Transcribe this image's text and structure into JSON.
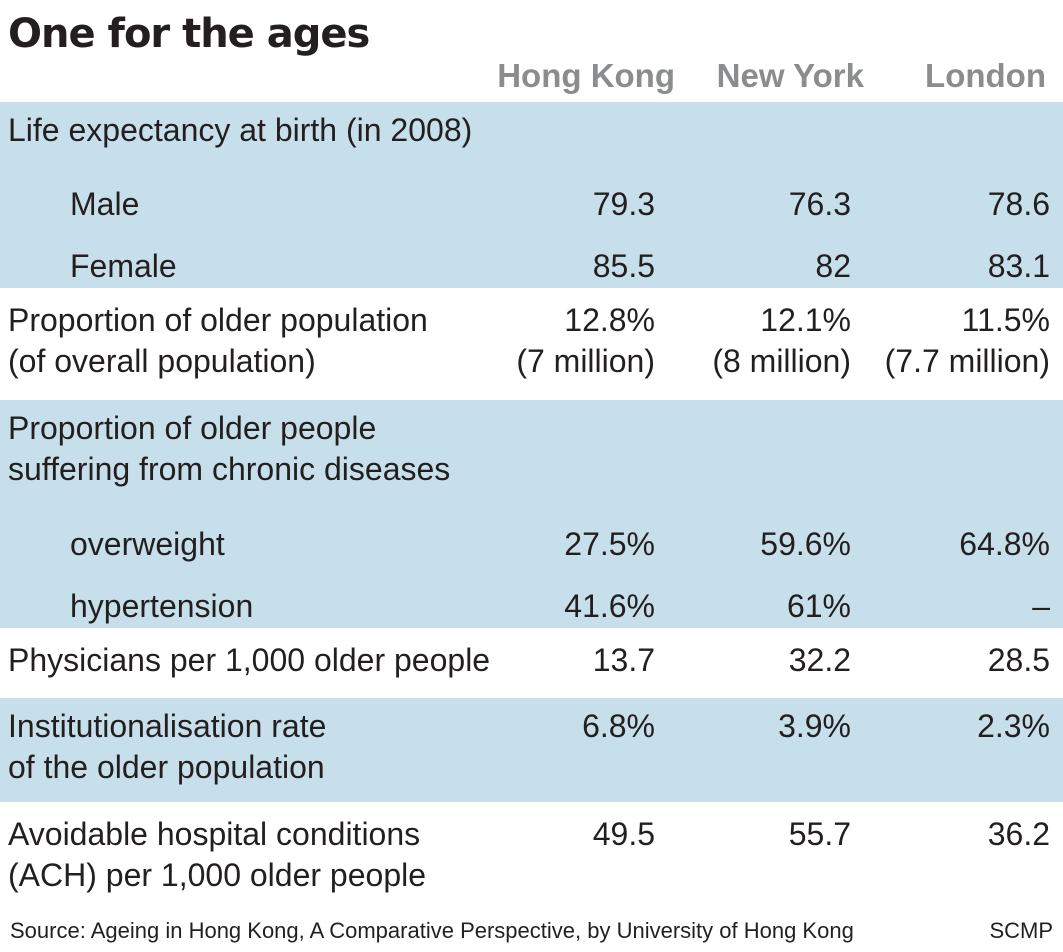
{
  "title": "One for the ages",
  "columns": [
    "Hong Kong",
    "New York",
    "London"
  ],
  "chart_data": {
    "type": "table",
    "title": "One for the ages",
    "columns": [
      "Hong Kong",
      "New York",
      "London"
    ],
    "rows": [
      {
        "label": "Life expectancy at birth (in 2008)",
        "kind": "group",
        "shaded": true,
        "values": []
      },
      {
        "label": "Male",
        "kind": "sub",
        "shaded": true,
        "values": [
          "79.3",
          "76.3",
          "78.6"
        ]
      },
      {
        "label": "Female",
        "kind": "sub",
        "shaded": true,
        "values": [
          "85.5",
          "82",
          "83.1"
        ]
      },
      {
        "label": "Proportion of older population\n(of overall population)",
        "kind": "main",
        "shaded": false,
        "values": [
          "12.8%\n(7 million)",
          "12.1%\n(8 million)",
          "11.5%\n(7.7 million)"
        ]
      },
      {
        "label": "Proportion of older people\nsuffering from chronic diseases",
        "kind": "group",
        "shaded": true,
        "values": []
      },
      {
        "label": "overweight",
        "kind": "sub",
        "shaded": true,
        "values": [
          "27.5%",
          "59.6%",
          "64.8%"
        ]
      },
      {
        "label": "hypertension",
        "kind": "sub",
        "shaded": true,
        "values": [
          "41.6%",
          "61%",
          "–"
        ]
      },
      {
        "label": "Physicians per 1,000 older people",
        "kind": "main",
        "shaded": false,
        "values": [
          "13.7",
          "32.2",
          "28.5"
        ]
      },
      {
        "label": "Institutionalisation rate\nof the older population",
        "kind": "main",
        "shaded": true,
        "values": [
          "6.8%",
          "3.9%",
          "2.3%"
        ]
      },
      {
        "label": "Avoidable hospital conditions\n(ACH) per 1,000 older people",
        "kind": "main",
        "shaded": false,
        "values": [
          "49.5",
          "55.7",
          "36.2"
        ]
      }
    ]
  },
  "footer": {
    "source": "Source: Ageing in Hong Kong, A Comparative Perspective, by University of Hong Kong",
    "credit": "SCMP"
  },
  "colors": {
    "shade": "#c6dfeb",
    "header_text": "#8a8c8e",
    "text": "#231f20"
  }
}
